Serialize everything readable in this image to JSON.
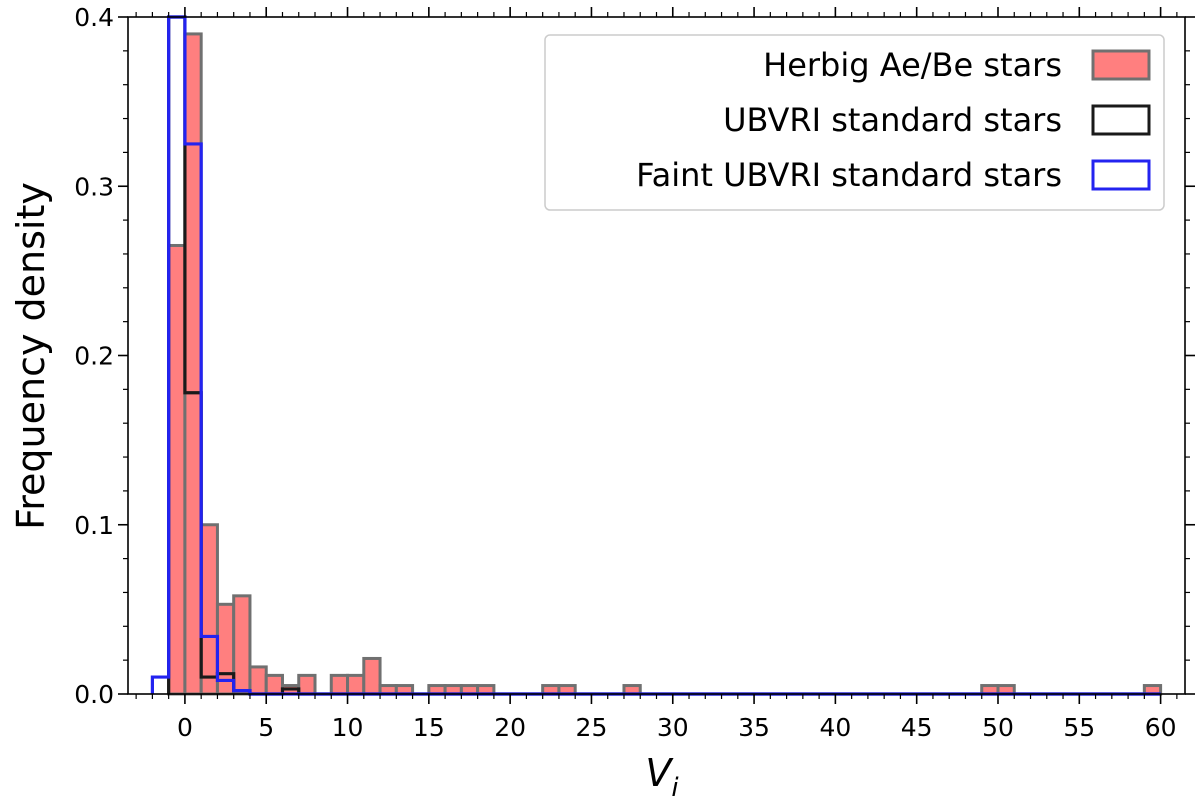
{
  "chart_data": {
    "type": "histogram",
    "xlabel": "V",
    "xlabel_subscript": "i",
    "ylabel": "Frequency density",
    "xlim": [
      -3.5,
      61.5
    ],
    "ylim": [
      0,
      0.4
    ],
    "xticks": [
      0,
      5,
      10,
      15,
      20,
      25,
      30,
      35,
      40,
      45,
      50,
      55,
      60
    ],
    "yticks": [
      0.0,
      0.1,
      0.2,
      0.3,
      0.4
    ],
    "ytick_labels": [
      "0.0",
      "0.1",
      "0.2",
      "0.3",
      "0.4"
    ],
    "legend_position": "top-right",
    "series": [
      {
        "name": "Herbig Ae/Be stars",
        "style": "filled",
        "fill": "#ff7f7f",
        "edge": "#707070",
        "bins": [
          [
            -1,
            0,
            0.265
          ],
          [
            0,
            1,
            0.39
          ],
          [
            1,
            2,
            0.1
          ],
          [
            2,
            3,
            0.053
          ],
          [
            3,
            4,
            0.058
          ],
          [
            4,
            5,
            0.016
          ],
          [
            5,
            6,
            0.011
          ],
          [
            6,
            7,
            0.005
          ],
          [
            7,
            8,
            0.011
          ],
          [
            8,
            9,
            0.0
          ],
          [
            9,
            10,
            0.011
          ],
          [
            10,
            11,
            0.011
          ],
          [
            11,
            12,
            0.021
          ],
          [
            12,
            13,
            0.005
          ],
          [
            13,
            14,
            0.005
          ],
          [
            14,
            15,
            0.0
          ],
          [
            15,
            16,
            0.005
          ],
          [
            16,
            17,
            0.005
          ],
          [
            17,
            18,
            0.005
          ],
          [
            18,
            19,
            0.005
          ],
          [
            22,
            23,
            0.005
          ],
          [
            23,
            24,
            0.005
          ],
          [
            27,
            28,
            0.005
          ],
          [
            49,
            50,
            0.005
          ],
          [
            50,
            51,
            0.005
          ],
          [
            59,
            60,
            0.005
          ]
        ]
      },
      {
        "name": "UBVRI standard stars",
        "style": "step",
        "color": "#1a1a1a",
        "points": [
          [
            -1,
            0
          ],
          [
            -1,
            0.4
          ],
          [
            0,
            0.4
          ],
          [
            0,
            0.178
          ],
          [
            1,
            0.178
          ],
          [
            1,
            0.01
          ],
          [
            2,
            0.01
          ],
          [
            2,
            0.012
          ],
          [
            3,
            0.012
          ],
          [
            3,
            0.002
          ],
          [
            4,
            0.002
          ],
          [
            4,
            0
          ],
          [
            6,
            0
          ],
          [
            6,
            0.003
          ],
          [
            7,
            0.003
          ],
          [
            7,
            0
          ],
          [
            60,
            0
          ]
        ]
      },
      {
        "name": "Faint UBVRI standard stars",
        "style": "step",
        "color": "#2323f0",
        "points": [
          [
            -2,
            0
          ],
          [
            -2,
            0.01
          ],
          [
            -1,
            0.01
          ],
          [
            -1,
            0.4
          ],
          [
            0,
            0.4
          ],
          [
            0,
            0.325
          ],
          [
            1,
            0.325
          ],
          [
            1,
            0.034
          ],
          [
            2,
            0.034
          ],
          [
            2,
            0.008
          ],
          [
            3,
            0.008
          ],
          [
            3,
            0.002
          ],
          [
            4,
            0.002
          ],
          [
            4,
            0
          ],
          [
            60,
            0
          ]
        ]
      }
    ]
  }
}
